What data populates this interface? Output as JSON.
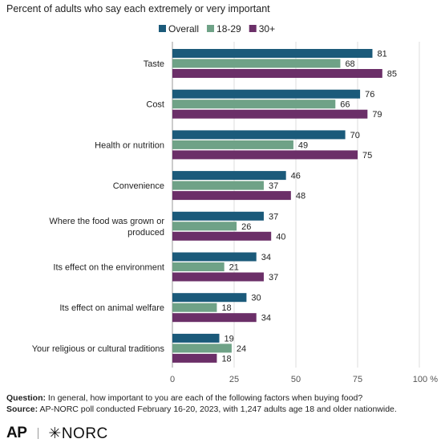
{
  "subtitle": "Percent of adults who say each extremely or very important",
  "colors": {
    "Overall": "#1b5a7a",
    "18-29": "#6fa287",
    "30+": "#6b2f68",
    "grid": "#dddddd",
    "axis": "#999999"
  },
  "footer": {
    "question_label": "Question:",
    "question_text": "In general, how important to you are each of the following factors when buying food?",
    "source_label": "Source:",
    "source_text": "AP-NORC poll conducted February 16-20, 2023, with 1,247 adults age 18 and older nationwide."
  },
  "logos": {
    "ap": "AP",
    "norc": "✳NORC"
  },
  "chart_data": {
    "type": "bar",
    "orientation": "horizontal",
    "title": "",
    "xlabel": "",
    "ylabel": "",
    "xlim": [
      0,
      100
    ],
    "x_ticks": [
      "0",
      "25",
      "50",
      "75",
      "100 %"
    ],
    "grid": true,
    "legend_position": "top",
    "categories": [
      "Taste",
      "Cost",
      "Health or nutrition",
      "Convenience",
      "Where the food was grown or produced",
      "Its effect on the environment",
      "Its effect on animal welfare",
      "Your religious or cultural traditions"
    ],
    "category_lines": [
      [
        "Taste"
      ],
      [
        "Cost"
      ],
      [
        "Health or nutrition"
      ],
      [
        "Convenience"
      ],
      [
        "Where the food was grown or",
        "produced"
      ],
      [
        "Its effect on the environment"
      ],
      [
        "Its effect on animal welfare"
      ],
      [
        "Your religious or cultural traditions"
      ]
    ],
    "series": [
      {
        "name": "Overall",
        "values": [
          81,
          76,
          70,
          46,
          37,
          34,
          30,
          19
        ]
      },
      {
        "name": "18-29",
        "values": [
          68,
          66,
          49,
          37,
          26,
          21,
          18,
          24
        ]
      },
      {
        "name": "30+",
        "values": [
          85,
          79,
          75,
          48,
          40,
          37,
          34,
          18
        ]
      }
    ]
  }
}
